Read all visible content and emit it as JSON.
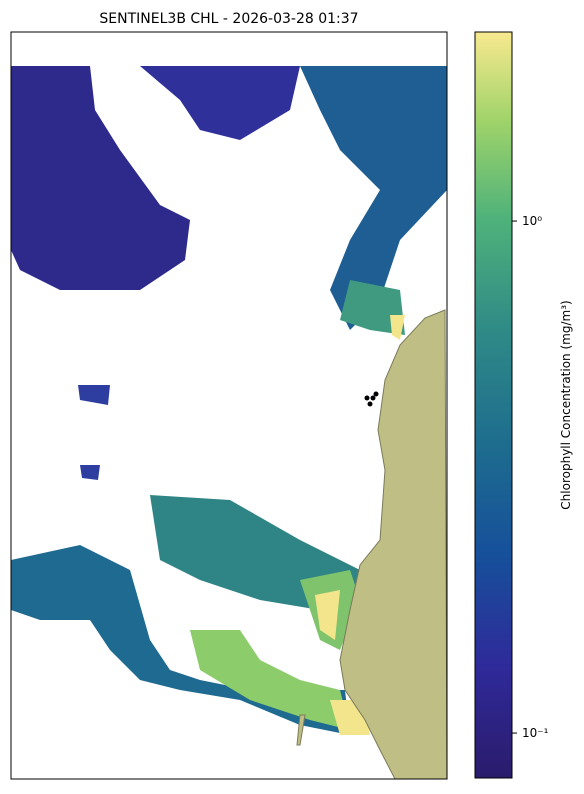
{
  "chart_data": {
    "type": "map",
    "title": "SENTINEL3B CHL - 2026-03-28 01:37",
    "colorbar_label": "Chlorophyll Concentration (mg/m³)",
    "clim": [
      0.0817,
      2.34
    ],
    "log_scale": true,
    "cticks": [
      {
        "value": 0.1,
        "label": "10⁻¹"
      },
      {
        "value": 1,
        "label": "10⁰"
      }
    ]
  }
}
